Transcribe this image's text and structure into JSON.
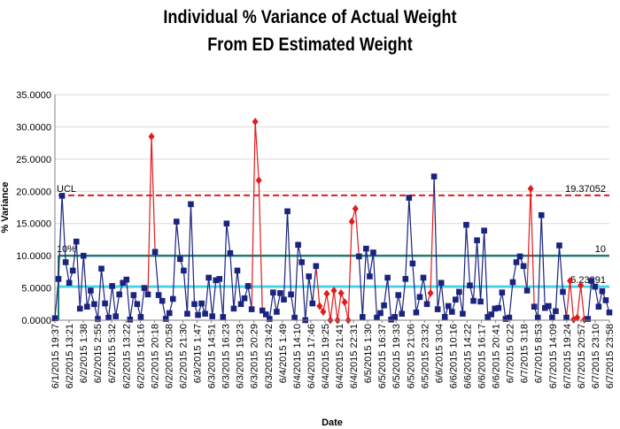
{
  "chart_data": {
    "type": "line",
    "title_line1": "Individual % Variance of Actual Weight",
    "title_line2": "From ED Estimated Weight",
    "xlabel": "Date",
    "ylabel": "% Variance",
    "ylim": [
      0,
      35
    ],
    "yticks": [
      "0.0000",
      "5.0000",
      "10.0000",
      "15.0000",
      "20.0000",
      "25.0000",
      "30.0000",
      "35.0000"
    ],
    "xticks": [
      "6/1/2015 19:37",
      "6/2/2015 13:21",
      "6/2/2015 1:38",
      "6/2/2015 2:55",
      "6/2/2015 5:32",
      "6/2/2015 13:22",
      "6/2/2015 16:16",
      "6/2/2015 20:18",
      "6/2/2015 20:58",
      "6/2/2015 21:30",
      "6/3/2015 1:47",
      "6/3/2015 14:51",
      "6/3/2015 16:23",
      "6/3/2015 19:23",
      "6/3/2015 20:29",
      "6/3/2015 23:42",
      "6/4/2015 1:49",
      "6/4/2015 14:10",
      "6/4/2015 17:46",
      "6/4/2015 19:25",
      "6/4/2015 21:41",
      "6/4/2015 22:31",
      "6/5/2015 1:30",
      "6/5/2015 16:37",
      "6/5/2015 19:33",
      "6/5/2015 21:06",
      "6/5/2015 23:32",
      "6/6/2015 3:04",
      "6/6/2015 10:16",
      "6/6/2015 14:22",
      "6/6/2015 16:17",
      "6/6/2015 20:41",
      "6/7/2015 0:22",
      "6/7/2015 3:18",
      "6/7/2015 8:53",
      "6/7/2015 14:09",
      "6/7/2015 19:24",
      "6/7/2015 20:57",
      "6/7/2015 23:10",
      "6/7/2015 23:58"
    ],
    "reference_lines": [
      {
        "name": "UCL",
        "label": "UCL",
        "value": 19.37052,
        "value_label": "19.37052",
        "color": "#e31a1c",
        "style": "dashed"
      },
      {
        "name": "10%",
        "label": "10%",
        "value": 10,
        "value_label": "10",
        "color": "#1f7a78",
        "style": "solid"
      },
      {
        "name": "mean",
        "label": "",
        "value": 5.23891,
        "value_label": "5.23891",
        "color": "#3fd3e6",
        "style": "solid"
      }
    ],
    "series": [
      {
        "marker": "square",
        "color": "#1a237e",
        "y": [
          0.3,
          6.4,
          19.3,
          9.0,
          5.8,
          7.7,
          12.2,
          1.8,
          10.0,
          2.1,
          4.6,
          2.5,
          0.2,
          8.0,
          2.6,
          0.4,
          5.3,
          0.6,
          4.0,
          5.8,
          6.3,
          0.1,
          3.9,
          2.5,
          0.5,
          5.0,
          4.0,
          28.5,
          10.6,
          3.9,
          3.0,
          0.2,
          1.1,
          3.3,
          15.3,
          9.5,
          7.7,
          1.0,
          18.0,
          2.5,
          0.8,
          2.6,
          1.0,
          6.6,
          0.6,
          6.2,
          6.4,
          0.5,
          15.0,
          10.4,
          1.8,
          7.7,
          2.5,
          3.4,
          5.3,
          1.7,
          30.8,
          21.7,
          1.5,
          0.9,
          0.2,
          4.3,
          1.3,
          4.2,
          3.2,
          16.9,
          4.0,
          0.4,
          11.7,
          9.0,
          0.0,
          6.8,
          2.6,
          8.4,
          2.2,
          1.3,
          4.1,
          0.0,
          4.6,
          0.0,
          4.2,
          2.8,
          0.0,
          15.3,
          17.3,
          9.9,
          0.5,
          11.1,
          6.8,
          10.5,
          0.4,
          1.1,
          2.3,
          6.6,
          0.1,
          0.5,
          3.9,
          1.0,
          6.4,
          19.0,
          8.8,
          1.2,
          3.6,
          6.6,
          2.5,
          4.2,
          22.3,
          1.7,
          5.8,
          0.5,
          2.2,
          1.3,
          3.2,
          4.4,
          1.0,
          14.8,
          5.4,
          3.0,
          12.4,
          2.9,
          13.9,
          0.5,
          0.9,
          1.8,
          1.9,
          4.3,
          0.2,
          0.4,
          5.9,
          9.0,
          9.9,
          8.4,
          4.6,
          20.4,
          2.1,
          0.4,
          16.3,
          1.9,
          2.2,
          0.4,
          1.4,
          11.6,
          4.4,
          0.4,
          6.1,
          0.1,
          0.4,
          5.4,
          0.1,
          0.2,
          6.1,
          5.2,
          2.1,
          4.5,
          3.1,
          1.2
        ],
        "out_of_control_color": "#e31a1c",
        "out_of_control_indices": [
          27,
          56,
          57,
          74,
          75,
          76,
          77,
          78,
          79,
          80,
          81,
          82,
          83,
          84,
          105,
          133,
          144,
          145,
          146,
          147,
          148
        ]
      }
    ]
  }
}
